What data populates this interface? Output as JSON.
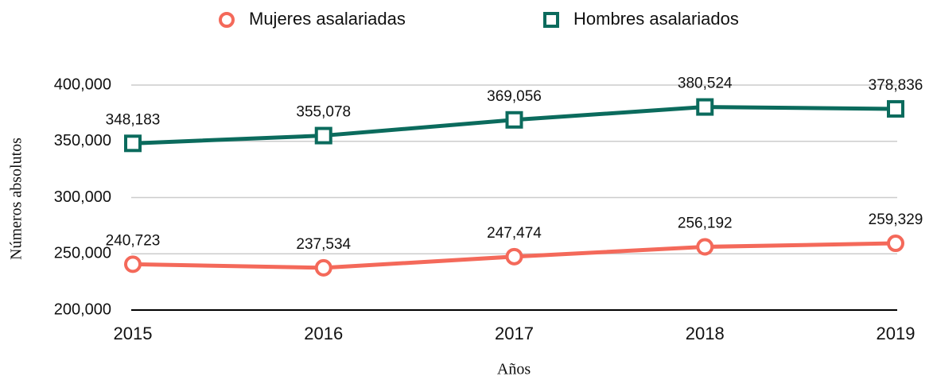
{
  "chart_data": {
    "type": "line",
    "categories": [
      "2015",
      "2016",
      "2017",
      "2018",
      "2019"
    ],
    "series": [
      {
        "name": "Mujeres asalariadas",
        "color": "#f4695a",
        "marker": "circle",
        "values": [
          240723,
          237534,
          247474,
          256192,
          259329
        ],
        "value_labels": [
          "240,723",
          "237,534",
          "247,474",
          "256,192",
          "259,329"
        ]
      },
      {
        "name": "Hombres asalariados",
        "color": "#0b6b5d",
        "marker": "square",
        "values": [
          348183,
          355078,
          369056,
          380524,
          378836
        ],
        "value_labels": [
          "348,183",
          "355,078",
          "369,056",
          "380,524",
          "378,836"
        ]
      }
    ],
    "xlabel": "Años",
    "ylabel": "Números absolutos",
    "ylim": [
      200000,
      400000
    ],
    "yticks": [
      {
        "value": 200000,
        "label": "200,000"
      },
      {
        "value": 250000,
        "label": "250,000"
      },
      {
        "value": 300000,
        "label": "300,000"
      },
      {
        "value": 350000,
        "label": "350,000"
      },
      {
        "value": 400000,
        "label": "400,000"
      }
    ],
    "grid": true,
    "legend": "top"
  }
}
